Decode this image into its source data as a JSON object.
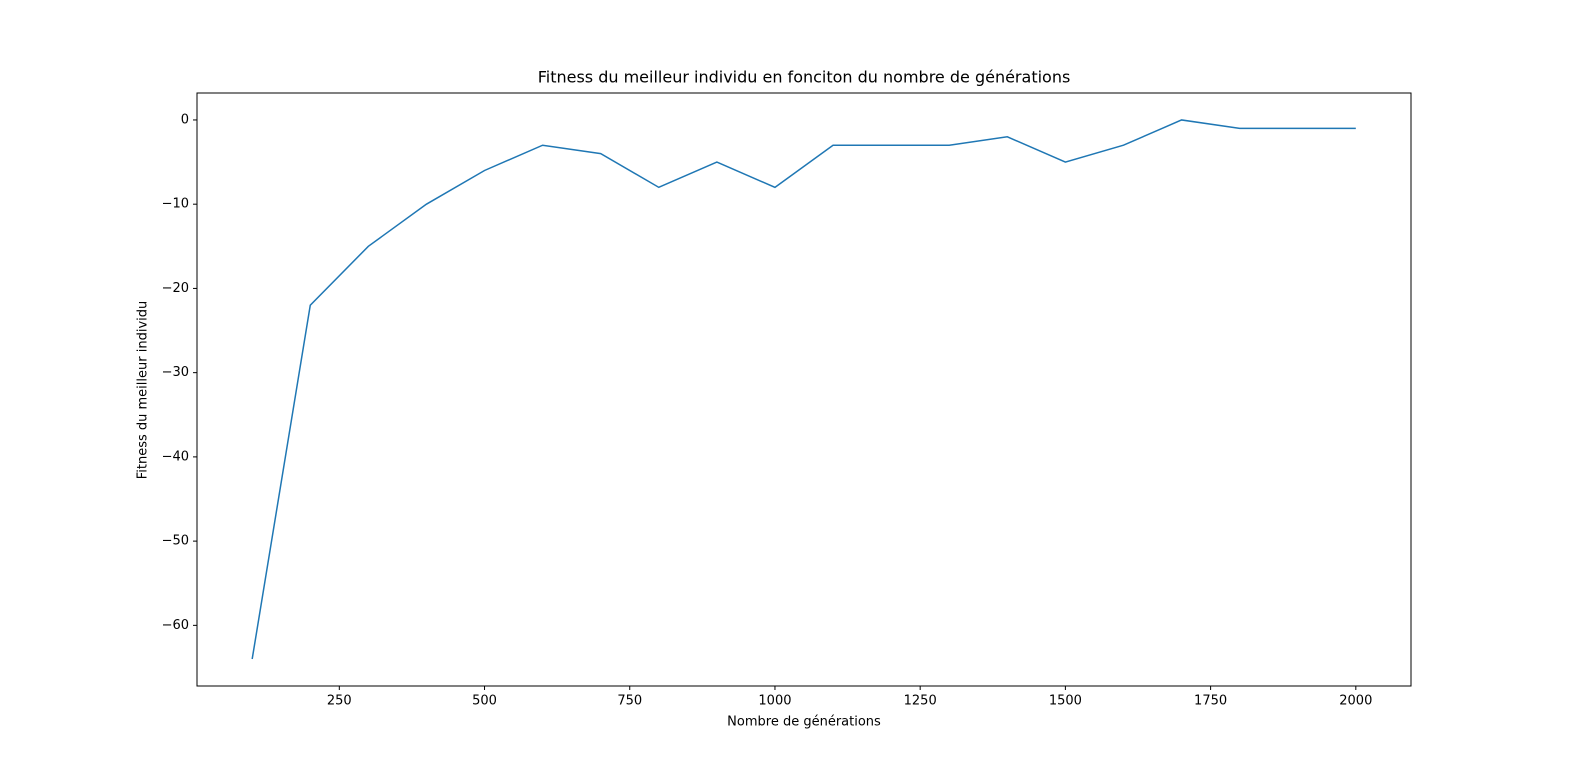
{
  "chart_data": {
    "type": "line",
    "title": "Fitness du meilleur individu en fonciton du nombre de générations",
    "x_label": "Nombre de générations",
    "y_label": "Fitness du meilleur individu",
    "x": [
      100,
      200,
      300,
      400,
      500,
      600,
      700,
      800,
      900,
      1000,
      1100,
      1200,
      1300,
      1400,
      1500,
      1600,
      1700,
      1800,
      1900,
      2000
    ],
    "series": [
      {
        "color": "#1f77b4",
        "values": [
          -64,
          -22,
          -15,
          -10,
          -6,
          -3,
          -4,
          -8,
          -5,
          -8,
          -3,
          -3,
          -3,
          -2,
          -5,
          -3,
          0,
          -1,
          -1,
          -1
        ]
      }
    ],
    "xlim": [
      5,
      2095
    ],
    "ylim": [
      -67.2,
      3.2
    ],
    "xticks": [
      250,
      500,
      750,
      1000,
      1250,
      1500,
      1750,
      2000
    ],
    "yticks": [
      {
        "value": -60,
        "label": "−60"
      },
      {
        "value": -50,
        "label": "−50"
      },
      {
        "value": -40,
        "label": "−40"
      },
      {
        "value": -30,
        "label": "−30"
      },
      {
        "value": -20,
        "label": "−20"
      },
      {
        "value": -10,
        "label": "−10"
      },
      0
    ],
    "grid": false
  }
}
